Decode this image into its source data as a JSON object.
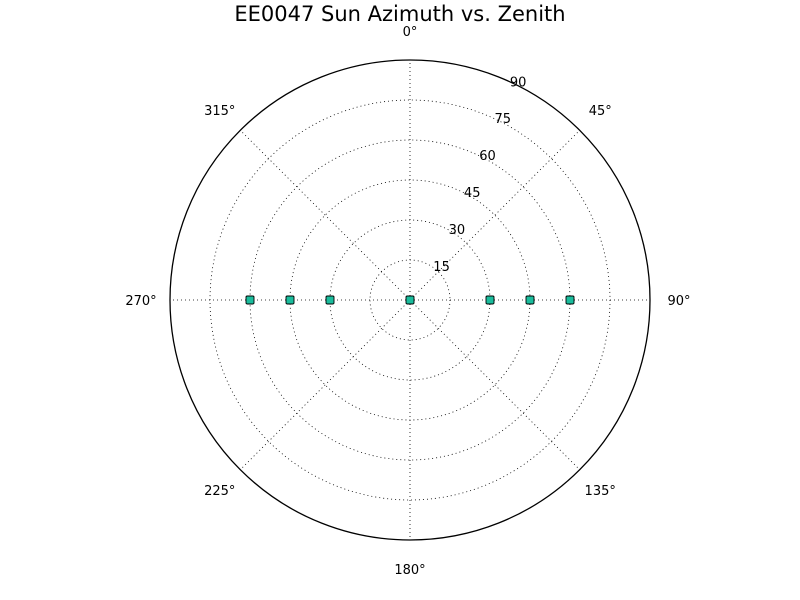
{
  "chart_data": {
    "type": "scatter",
    "projection": "polar",
    "title": "EE0047 Sun Azimuth vs. Zenith",
    "theta_direction": "clockwise",
    "theta_zero_location": "top",
    "theta_ticks": [
      0,
      45,
      90,
      135,
      180,
      225,
      270,
      315
    ],
    "theta_tick_labels": [
      "0°",
      "45°",
      "90°",
      "135°",
      "180°",
      "225°",
      "270°",
      "315°"
    ],
    "r_ticks": [
      15,
      30,
      45,
      60,
      75,
      90
    ],
    "r_tick_labels": [
      "15",
      "30",
      "45",
      "60",
      "75",
      "90"
    ],
    "rlim": [
      0,
      90
    ],
    "grid": true,
    "marker_color": "#1abc9c",
    "series": [
      {
        "marker": "square",
        "points": [
          {
            "azimuth": 270,
            "zenith": 60
          },
          {
            "azimuth": 270,
            "zenith": 45
          },
          {
            "azimuth": 270,
            "zenith": 30
          },
          {
            "azimuth": 0,
            "zenith": 0
          },
          {
            "azimuth": 90,
            "zenith": 30
          },
          {
            "azimuth": 90,
            "zenith": 45
          },
          {
            "azimuth": 90,
            "zenith": 60
          }
        ]
      }
    ]
  }
}
